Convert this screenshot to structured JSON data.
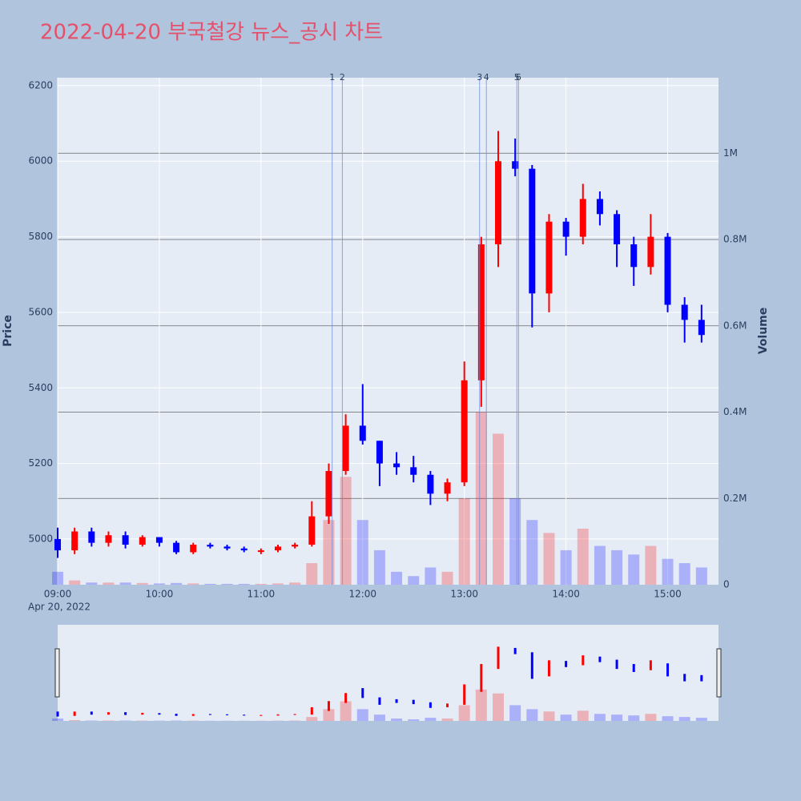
{
  "chart_data": {
    "type": "candlestick",
    "title": "2022-04-20 부국철강 뉴스_공시 차트",
    "title_color": "#e5506a",
    "y_label": "Price",
    "y2_label": "Volume",
    "x_date_label": "Apr 20, 2022",
    "x": [
      "2022-04-20 09:00",
      "2022-04-20 09:10",
      "2022-04-20 09:20",
      "2022-04-20 09:30",
      "2022-04-20 09:40",
      "2022-04-20 09:50",
      "2022-04-20 10:00",
      "2022-04-20 10:10",
      "2022-04-20 10:20",
      "2022-04-20 10:30",
      "2022-04-20 10:40",
      "2022-04-20 10:50",
      "2022-04-20 11:00",
      "2022-04-20 11:10",
      "2022-04-20 11:20",
      "2022-04-20 11:30",
      "2022-04-20 11:40",
      "2022-04-20 11:50",
      "2022-04-20 12:00",
      "2022-04-20 12:10",
      "2022-04-20 12:20",
      "2022-04-20 12:30",
      "2022-04-20 12:40",
      "2022-04-20 12:50",
      "2022-04-20 13:00",
      "2022-04-20 13:10",
      "2022-04-20 13:20",
      "2022-04-20 13:30",
      "2022-04-20 13:40",
      "2022-04-20 13:50",
      "2022-04-20 14:00",
      "2022-04-20 14:10",
      "2022-04-20 14:20",
      "2022-04-20 14:30",
      "2022-04-20 14:40",
      "2022-04-20 14:50",
      "2022-04-20 15:00",
      "2022-04-20 15:10",
      "2022-04-20 15:20"
    ],
    "open": [
      5000,
      4970,
      5020,
      4990,
      5010,
      4985,
      5005,
      4990,
      4965,
      4985,
      4980,
      4975,
      4970,
      4970,
      4980,
      4985,
      5060,
      5180,
      5300,
      5260,
      5200,
      5190,
      5170,
      5120,
      5150,
      5420,
      5780,
      6000,
      5980,
      5650,
      5840,
      5800,
      5900,
      5860,
      5780,
      5720,
      5800,
      5620,
      5580
    ],
    "high": [
      5030,
      5030,
      5030,
      5020,
      5020,
      5010,
      5005,
      4995,
      4990,
      4990,
      4985,
      4980,
      4975,
      4985,
      4990,
      5100,
      5200,
      5330,
      5410,
      5260,
      5230,
      5220,
      5180,
      5160,
      5470,
      5800,
      6080,
      6060,
      5990,
      5860,
      5850,
      5940,
      5920,
      5870,
      5800,
      5860,
      5810,
      5640,
      5620
    ],
    "low": [
      4950,
      4960,
      4980,
      4980,
      4975,
      4980,
      4980,
      4960,
      4960,
      4975,
      4970,
      4965,
      4960,
      4965,
      4975,
      4980,
      5040,
      5170,
      5250,
      5140,
      5170,
      5150,
      5090,
      5100,
      5140,
      5350,
      5720,
      5960,
      5560,
      5600,
      5750,
      5780,
      5830,
      5720,
      5670,
      5700,
      5600,
      5520,
      5520
    ],
    "close": [
      4970,
      5020,
      4990,
      5010,
      4985,
      5005,
      4990,
      4965,
      4985,
      4980,
      4975,
      4970,
      4970,
      4980,
      4985,
      5060,
      5180,
      5300,
      5260,
      5200,
      5190,
      5170,
      5120,
      5150,
      5420,
      5780,
      6000,
      5980,
      5650,
      5840,
      5800,
      5900,
      5860,
      5780,
      5720,
      5800,
      5620,
      5580,
      5540
    ],
    "volume": [
      30000,
      10000,
      5000,
      5000,
      5000,
      4000,
      3000,
      4000,
      3000,
      2000,
      2000,
      2000,
      2000,
      3000,
      5000,
      50000,
      150000,
      250000,
      150000,
      80000,
      30000,
      20000,
      40000,
      30000,
      200000,
      400000,
      350000,
      200000,
      150000,
      120000,
      80000,
      130000,
      90000,
      80000,
      70000,
      90000,
      60000,
      50000,
      40000
    ],
    "up_color": "#ff0000",
    "down_color": "#0000ff",
    "xlim": [
      "2022-04-20 09:00",
      "2022-04-20 15:30"
    ],
    "xticks": [
      {
        "value": "2022-04-20 09:00",
        "label": "09:00"
      },
      {
        "value": "2022-04-20 10:00",
        "label": "10:00"
      },
      {
        "value": "2022-04-20 11:00",
        "label": "11:00"
      },
      {
        "value": "2022-04-20 12:00",
        "label": "12:00"
      },
      {
        "value": "2022-04-20 13:00",
        "label": "13:00"
      },
      {
        "value": "2022-04-20 14:00",
        "label": "14:00"
      },
      {
        "value": "2022-04-20 15:00",
        "label": "15:00"
      }
    ],
    "ylim": [
      4879,
      6221
    ],
    "yticks": [
      5000,
      5200,
      5400,
      5600,
      5800,
      6000,
      6200
    ],
    "y2lim": [
      0,
      1175000
    ],
    "y2ticks": [
      0,
      {
        "value": 200000,
        "label": "0.2M"
      },
      {
        "value": 400000,
        "label": "0.4M"
      },
      {
        "value": 600000,
        "label": "0.6M"
      },
      {
        "value": 800000,
        "label": "0.8M"
      },
      {
        "value": 1000000,
        "label": "1M"
      }
    ],
    "news": [
      {
        "label": "1",
        "x": "2022-04-20 11:42"
      },
      {
        "label": "2",
        "x": "2022-04-20 11:48"
      },
      {
        "label": "3",
        "x": "2022-04-20 13:09"
      },
      {
        "label": "4",
        "x": "2022-04-20 13:13"
      },
      {
        "label": "5",
        "x": "2022-04-20 13:31"
      },
      {
        "label": "6",
        "x": "2022-04-20 13:32"
      }
    ],
    "grid": true
  }
}
